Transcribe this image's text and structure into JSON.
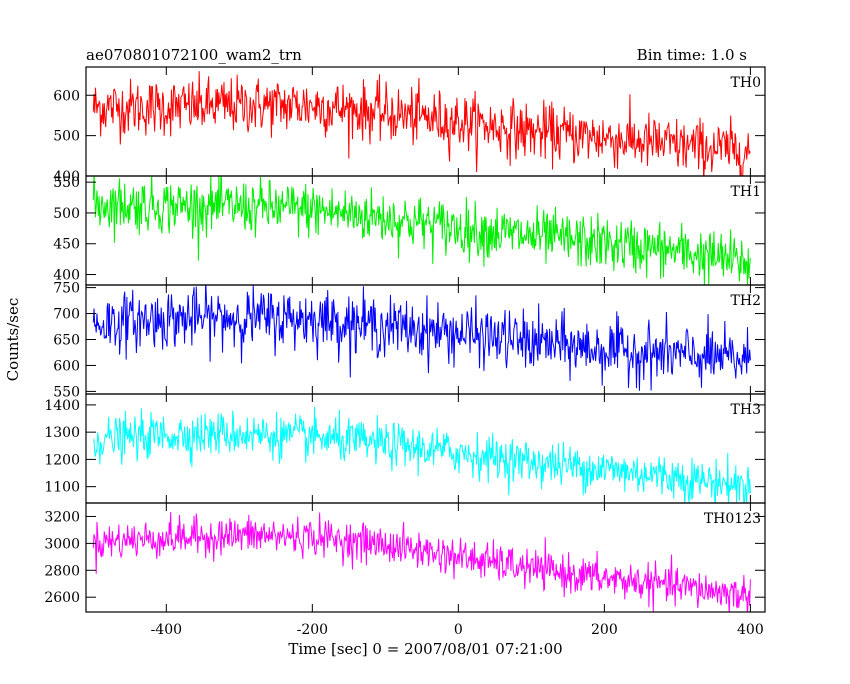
{
  "chart_data": {
    "type": "line",
    "title": "ae070801072100_wam2_trn",
    "subtitle": "Bin time: 1.0 s",
    "xlabel": "Time [sec] 0 = 2007/08/01 07:21:00",
    "ylabel": "Counts/sec",
    "xlim": [
      -510,
      420
    ],
    "x_ticks": [
      -400,
      -200,
      0,
      200,
      400
    ],
    "x_range": [
      -500,
      400
    ],
    "x_step": 1,
    "grid": false,
    "series": [
      {
        "name": "TH0",
        "color": "#ff0000",
        "ylim": [
          400,
          670
        ],
        "y_ticks": [
          400,
          500,
          600
        ],
        "trend_x": [
          -500,
          -400,
          -300,
          -200,
          -100,
          0,
          100,
          200,
          300,
          400
        ],
        "trend_y": [
          570,
          570,
          575,
          575,
          555,
          535,
          510,
          495,
          475,
          460
        ],
        "noise": 35
      },
      {
        "name": "TH1",
        "color": "#00ee00",
        "ylim": [
          383,
          560
        ],
        "y_ticks": [
          400,
          450,
          500,
          550
        ],
        "trend_x": [
          -500,
          -400,
          -300,
          -200,
          -100,
          0,
          100,
          200,
          300,
          400
        ],
        "trend_y": [
          515,
          512,
          510,
          505,
          492,
          475,
          462,
          450,
          438,
          418
        ],
        "noise": 22
      },
      {
        "name": "TH2",
        "color": "#0000ff",
        "ylim": [
          545,
          755
        ],
        "y_ticks": [
          550,
          600,
          650,
          700,
          750
        ],
        "trend_x": [
          -500,
          -400,
          -300,
          -200,
          -100,
          0,
          100,
          200,
          300,
          400
        ],
        "trend_y": [
          680,
          690,
          692,
          690,
          675,
          662,
          645,
          630,
          620,
          610
        ],
        "noise": 28
      },
      {
        "name": "TH3",
        "color": "#00ffff",
        "ylim": [
          1040,
          1440
        ],
        "y_ticks": [
          1100,
          1200,
          1300,
          1400
        ],
        "trend_x": [
          -500,
          -400,
          -300,
          -200,
          -100,
          0,
          100,
          200,
          300,
          400
        ],
        "trend_y": [
          1270,
          1290,
          1295,
          1280,
          1255,
          1225,
          1190,
          1165,
          1135,
          1100
        ],
        "noise": 40
      },
      {
        "name": "TH0123",
        "color": "#ff00ff",
        "ylim": [
          2490,
          3300
        ],
        "y_ticks": [
          2600,
          2800,
          3000,
          3200
        ],
        "trend_x": [
          -500,
          -400,
          -300,
          -200,
          -100,
          0,
          100,
          200,
          300,
          400
        ],
        "trend_y": [
          3010,
          3040,
          3060,
          3050,
          2990,
          2900,
          2810,
          2740,
          2680,
          2610
        ],
        "noise": 70
      }
    ]
  }
}
